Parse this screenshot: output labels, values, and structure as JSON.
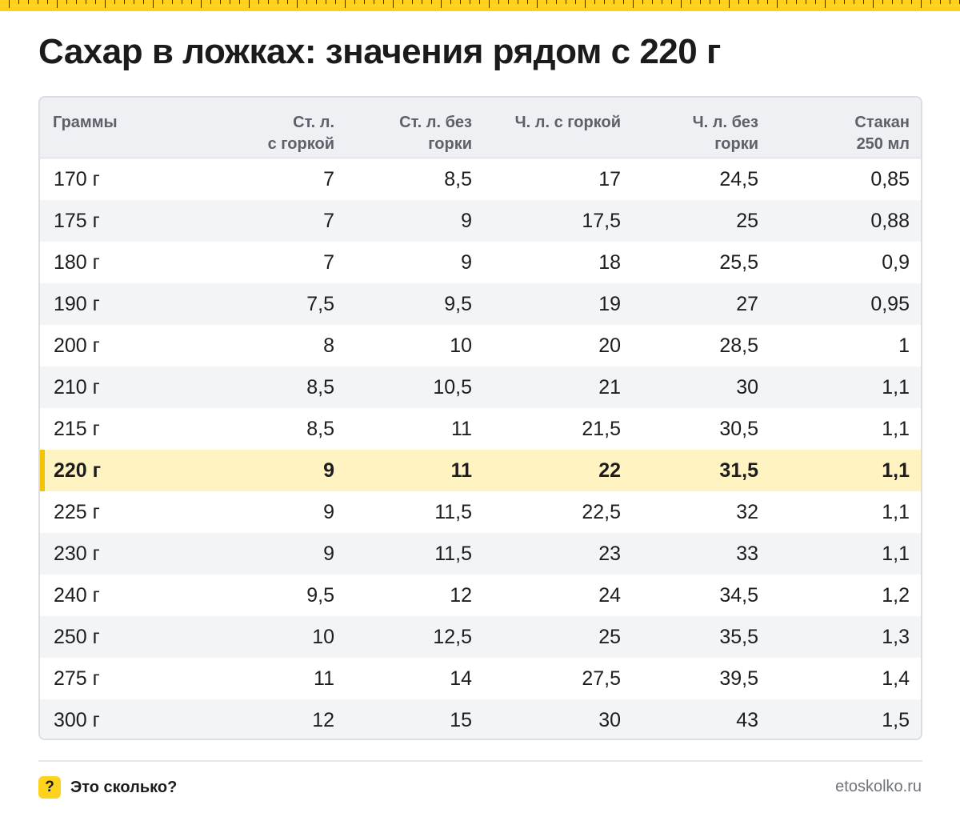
{
  "title": "Сахар в ложках: значения рядом с 220 г",
  "colors": {
    "accent": "#ffd21f",
    "highlight_row": "#fff3c2",
    "highlight_bar": "#f2c300"
  },
  "table": {
    "headers": [
      [
        "Граммы"
      ],
      [
        "Ст. л.",
        "с горкой"
      ],
      [
        "Ст. л. без",
        "горки"
      ],
      [
        "Ч. л. с горкой"
      ],
      [
        "Ч. л. без",
        "горки"
      ],
      [
        "Стакан",
        "250 мл"
      ]
    ],
    "highlight_row_index": 7,
    "rows": [
      [
        "170 г",
        "7",
        "8,5",
        "17",
        "24,5",
        "0,85"
      ],
      [
        "175 г",
        "7",
        "9",
        "17,5",
        "25",
        "0,88"
      ],
      [
        "180 г",
        "7",
        "9",
        "18",
        "25,5",
        "0,9"
      ],
      [
        "190 г",
        "7,5",
        "9,5",
        "19",
        "27",
        "0,95"
      ],
      [
        "200 г",
        "8",
        "10",
        "20",
        "28,5",
        "1"
      ],
      [
        "210 г",
        "8,5",
        "10,5",
        "21",
        "30",
        "1,1"
      ],
      [
        "215 г",
        "8,5",
        "11",
        "21,5",
        "30,5",
        "1,1"
      ],
      [
        "220 г",
        "9",
        "11",
        "22",
        "31,5",
        "1,1"
      ],
      [
        "225 г",
        "9",
        "11,5",
        "22,5",
        "32",
        "1,1"
      ],
      [
        "230 г",
        "9",
        "11,5",
        "23",
        "33",
        "1,1"
      ],
      [
        "240 г",
        "9,5",
        "12",
        "24",
        "34,5",
        "1,2"
      ],
      [
        "250 г",
        "10",
        "12,5",
        "25",
        "35,5",
        "1,3"
      ],
      [
        "275 г",
        "11",
        "14",
        "27,5",
        "39,5",
        "1,4"
      ],
      [
        "300 г",
        "12",
        "15",
        "30",
        "43",
        "1,5"
      ]
    ]
  },
  "footer": {
    "badge_glyph": "?",
    "brand_name": "Это сколько?",
    "site": "etoskolko.ru"
  }
}
